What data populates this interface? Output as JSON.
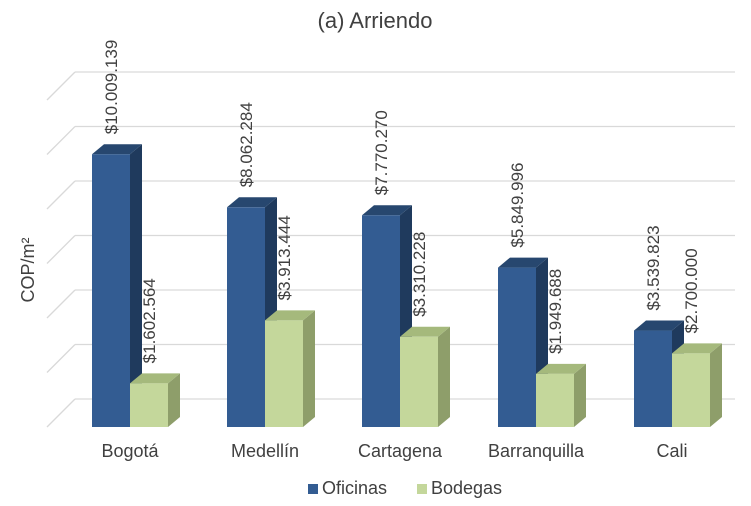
{
  "chart_data": {
    "type": "bar",
    "title": "(a) Arriendo",
    "ylabel": "COP/m²",
    "xlabel": "",
    "categories": [
      "Bogotá",
      "Medellín",
      "Cartagena",
      "Barranquilla",
      "Cali"
    ],
    "series": [
      {
        "name": "Oficinas",
        "values": [
          10009139,
          8062284,
          7770270,
          5849996,
          3539823
        ],
        "labels": [
          "$10.009.139",
          "$8.062.284",
          "$7.770.270",
          "$5.849.996",
          "$3.539.823"
        ],
        "color": "#335C92",
        "top_color": "#27476F",
        "side_color": "#1F3A5D"
      },
      {
        "name": "Bodegas",
        "values": [
          1602564,
          3913444,
          3310228,
          1949688,
          2700000
        ],
        "labels": [
          "$1.602.564",
          "$3.913.444",
          "$3.310.228",
          "$1.949.688",
          "$2.700.000"
        ],
        "color": "#C4D79B",
        "top_color": "#A5B97C",
        "side_color": "#8E9E6A"
      }
    ],
    "ylim": [
      0,
      12000000
    ],
    "grid": true,
    "legend": "bottom"
  }
}
